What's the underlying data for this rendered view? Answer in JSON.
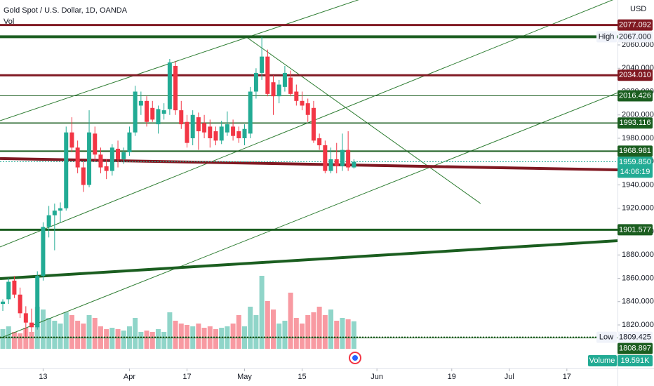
{
  "chart_data": {
    "type": "candlestick",
    "title": "Gold Spot / U.S. Dollar, 1D, OANDA",
    "volume_title": "Vol",
    "currency": "USD",
    "xlim": [
      -0.49,
      106.8
    ],
    "xticks": [
      {
        "value": 7,
        "label": "13"
      },
      {
        "value": 22,
        "label": "Apr"
      },
      {
        "value": 32,
        "label": "17"
      },
      {
        "value": 42,
        "label": "May"
      },
      {
        "value": 52,
        "label": "15"
      },
      {
        "value": 65,
        "label": "Jun"
      },
      {
        "value": 78,
        "label": "19"
      },
      {
        "value": 88,
        "label": "Jul"
      },
      {
        "value": 98,
        "label": "17"
      }
    ],
    "ylim": [
      1782.7,
      2098.5
    ],
    "yticks": [
      {
        "value": 1820,
        "label": "1820.000"
      },
      {
        "value": 1840,
        "label": "1840.000"
      },
      {
        "value": 1860,
        "label": "1860.000"
      },
      {
        "value": 1880,
        "label": "1880.000"
      },
      {
        "value": 1900,
        "label": "1900.000"
      },
      {
        "value": 1920,
        "label": "1920.000"
      },
      {
        "value": 1940,
        "label": "1940.000"
      },
      {
        "value": 1960,
        "label": "1960.000"
      },
      {
        "value": 1980,
        "label": "1980.000"
      },
      {
        "value": 2000,
        "label": "2000.000"
      },
      {
        "value": 2020,
        "label": "2020.000"
      },
      {
        "value": 2040,
        "label": "2040.000"
      },
      {
        "value": 2060,
        "label": "2060.000"
      }
    ],
    "grid": false,
    "up_color": "#22ab94",
    "down_color": "#f23645",
    "open": [
      1838,
      1842,
      1858,
      1846,
      1830,
      1822,
      1818,
      1862,
      1904,
      1914,
      1918,
      1920,
      1985,
      1972,
      1955,
      1940,
      1984,
      1966,
      1956,
      1952,
      1971,
      1962,
      1968,
      1985,
      2008,
      2012,
      2006,
      1992,
      2001,
      2005,
      2042,
      2004,
      1994,
      1980,
      1998,
      1993,
      1990,
      1986,
      1978,
      1985,
      1990,
      1986,
      1980,
      1984,
      2020,
      2036,
      2050,
      2028,
      2016,
      2024,
      2032,
      2020,
      2012,
      2010,
      2006,
      1980,
      1974,
      1952,
      1962,
      1956,
      1970,
      1955
    ],
    "high": [
      1842,
      1860,
      1862,
      1852,
      1836,
      1834,
      1866,
      1908,
      1922,
      1924,
      1925,
      1990,
      1998,
      1978,
      1960,
      2004,
      1990,
      1972,
      1962,
      1975,
      1978,
      1972,
      1990,
      2025,
      2020,
      2016,
      2012,
      2008,
      2010,
      2048,
      2046,
      2012,
      2000,
      2004,
      2002,
      2000,
      1996,
      1990,
      1995,
      2003,
      1996,
      1990,
      1992,
      2024,
      2040,
      2067,
      2056,
      2034,
      2030,
      2042,
      2038,
      2026,
      2020,
      2014,
      2012,
      1984,
      1978,
      1972,
      1976,
      1984,
      1986,
      1962
    ],
    "low": [
      1832,
      1838,
      1843,
      1826,
      1809.425,
      1814,
      1816,
      1858,
      1895,
      1884,
      1908,
      1918,
      1968,
      1950,
      1934,
      1938,
      1960,
      1950,
      1945,
      1948,
      1955,
      1958,
      1965,
      1982,
      2000,
      1990,
      1994,
      1984,
      1996,
      2000,
      2000,
      1988,
      1972,
      1974,
      1970,
      1980,
      1972,
      1974,
      1975,
      1982,
      1978,
      1976,
      1974,
      1980,
      2014,
      2030,
      2016,
      2000,
      2010,
      2020,
      2016,
      2008,
      2004,
      1994,
      1976,
      1970,
      1950,
      1950,
      1950,
      1952,
      1952,
      1954
    ],
    "close": [
      1840,
      1857,
      1846,
      1830,
      1822,
      1818,
      1862,
      1904,
      1914,
      1918,
      1920,
      1985,
      1972,
      1955,
      1940,
      1985,
      1966,
      1955,
      1952,
      1972,
      1962,
      1968,
      1985,
      2020,
      2012,
      1994,
      1996,
      2005,
      2004,
      2045,
      2004,
      1992,
      1976,
      2000,
      1986,
      1985,
      1980,
      1978,
      1990,
      1992,
      1982,
      1980,
      1988,
      2020,
      2036,
      2050,
      2018,
      2016,
      2026,
      2036,
      2018,
      2012,
      2008,
      2000,
      1978,
      1974,
      1952,
      1962,
      1956,
      1970,
      1955,
      1959.85
    ],
    "volume": {
      "name": "Volume",
      "values": [
        14,
        16,
        12,
        11,
        15,
        12,
        30,
        28,
        22,
        20,
        18,
        26,
        24,
        20,
        18,
        24,
        22,
        16,
        14,
        15,
        14,
        13,
        16,
        22,
        12,
        13,
        12,
        14,
        12,
        26,
        20,
        18,
        17,
        16,
        18,
        15,
        16,
        14,
        15,
        16,
        18,
        24,
        16,
        30,
        24,
        52,
        34,
        28,
        18,
        20,
        40,
        22,
        18,
        24,
        26,
        30,
        24,
        28,
        20,
        22,
        21,
        19.591
      ],
      "value_label": "19.591K",
      "ylim": [
        0,
        60
      ]
    },
    "levels": [
      {
        "value": 2077.092,
        "label": "2077.092",
        "color": "#801922",
        "width": 3
      },
      {
        "value": 2067,
        "label": "2067.000",
        "color": "#1b5e20",
        "width": 4,
        "tag": "High",
        "light": true
      },
      {
        "value": 2034.01,
        "label": "2034.010",
        "color": "#801922",
        "width": 3
      },
      {
        "value": 2016.426,
        "label": "2016.426",
        "color": "#1b5e20",
        "width": 1
      },
      {
        "value": 1993.116,
        "label": "1993.116",
        "color": "#1b5e20",
        "width": 1.5
      },
      {
        "value": 1968.981,
        "label": "1968.981",
        "color": "#1b5e20",
        "width": 2
      },
      {
        "value": 1959.85,
        "label": "1959.850",
        "color": "#22ab94",
        "width": 1,
        "dash": true,
        "countdown": "14:06:19"
      },
      {
        "value": 1901.577,
        "label": "1901.577",
        "color": "#1b5e20",
        "width": 3
      },
      {
        "value": 1809.425,
        "label": "1809.425",
        "color": "#1b5e20",
        "width": 2,
        "tag": "Low",
        "light": true,
        "dash": true
      },
      {
        "value": 1808.897,
        "label": "1808.897",
        "color": "#1b5e20",
        "width": 1
      }
    ],
    "trendlines": [
      {
        "x": [
          -0.49,
          61.7
        ],
        "y": [
          1995.0,
          2098.5
        ],
        "color": "#2e7d32",
        "width": 1,
        "extend": true
      },
      {
        "x": [
          -0.49,
          104.4
        ],
        "y": [
          1886.8,
          2095.5
        ],
        "color": "#2e7d32",
        "width": 1,
        "extend": true
      },
      {
        "x": [
          -0.49,
          104.4
        ],
        "y": [
          1808.6,
          2014.3
        ],
        "color": "#2e7d32",
        "width": 1,
        "extend": true
      },
      {
        "x": [
          42.2,
          83.0
        ],
        "y": [
          2067.2,
          1924.1
        ],
        "color": "#2e7d32",
        "width": 1,
        "extend": false
      },
      {
        "x": [
          -0.49,
          106.8
        ],
        "y": [
          1859.7,
          1892.2
        ],
        "color": "#1b5e20",
        "width": 4,
        "extend": true
      },
      {
        "x": [
          -0.49,
          106.8
        ],
        "y": [
          1962.6,
          1952.9
        ],
        "color": "#801922",
        "width": 4,
        "extend": true
      }
    ]
  }
}
